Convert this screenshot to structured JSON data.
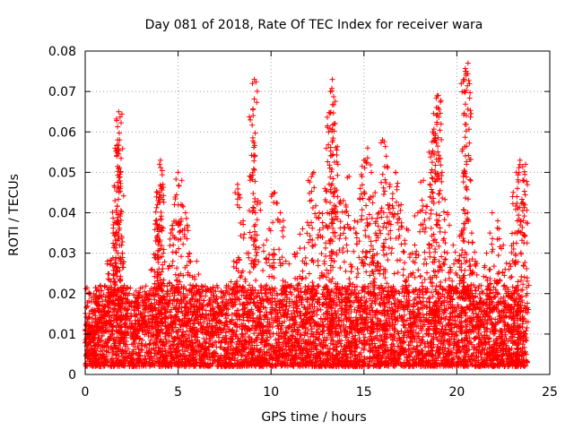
{
  "chart_data": {
    "type": "scatter",
    "title": "Day 081 of 2018, Rate Of TEC Index for receiver wara",
    "xlabel": "GPS time / hours",
    "ylabel": "ROTI / TECUs",
    "xlim": [
      0,
      25
    ],
    "ylim": [
      0,
      0.08
    ],
    "x_ticks": [
      0,
      5,
      10,
      15,
      20,
      25
    ],
    "x_tick_labels": [
      "0",
      "5",
      "10",
      "15",
      "20",
      "25"
    ],
    "y_ticks": [
      0,
      0.01,
      0.02,
      0.03,
      0.04,
      0.05,
      0.06,
      0.07,
      0.08
    ],
    "y_tick_labels": [
      "0",
      "0.01",
      "0.02",
      "0.03",
      "0.04",
      "0.05",
      "0.06",
      "0.07",
      "0.08"
    ],
    "grid": true,
    "marker": "+",
    "color": "#ff0000",
    "series": [
      {
        "name": "ROTI",
        "x": [
          0.1,
          0.2,
          0.3,
          0.4,
          0.5,
          0.6,
          0.8,
          1.0,
          1.2,
          1.4,
          1.5,
          1.6,
          1.7,
          1.75,
          1.8,
          1.85,
          1.9,
          2.0,
          2.1,
          2.3,
          2.5,
          2.7,
          3.0,
          3.3,
          3.6,
          3.8,
          3.9,
          4.0,
          4.05,
          4.1,
          4.2,
          4.4,
          4.6,
          4.8,
          5.0,
          5.2,
          5.4,
          5.6,
          5.8,
          6.0,
          6.2,
          6.5,
          6.8,
          7.0,
          7.3,
          7.6,
          8.0,
          8.2,
          8.5,
          8.8,
          9.0,
          9.1,
          9.3,
          9.6,
          9.9,
          10.2,
          10.5,
          10.8,
          11.1,
          11.4,
          11.7,
          12.0,
          12.3,
          12.6,
          12.9,
          13.1,
          13.2,
          13.3,
          13.4,
          13.6,
          13.9,
          14.2,
          14.5,
          14.8,
          15.0,
          15.2,
          15.4,
          15.6,
          15.8,
          16.0,
          16.2,
          16.4,
          16.7,
          17.0,
          17.3,
          17.6,
          17.9,
          18.2,
          18.5,
          18.7,
          18.8,
          18.9,
          19.0,
          19.2,
          19.5,
          19.8,
          20.1,
          20.3,
          20.4,
          20.5,
          20.6,
          20.8,
          21.0,
          21.3,
          21.6,
          21.9,
          22.2,
          22.5,
          22.8,
          23.0,
          23.2,
          23.4,
          23.6,
          23.7
        ],
        "y": [
          0.009,
          0.012,
          0.008,
          0.015,
          0.011,
          0.018,
          0.022,
          0.013,
          0.028,
          0.02,
          0.035,
          0.043,
          0.054,
          0.058,
          0.065,
          0.058,
          0.05,
          0.03,
          0.022,
          0.016,
          0.012,
          0.018,
          0.014,
          0.02,
          0.026,
          0.038,
          0.045,
          0.052,
          0.053,
          0.046,
          0.03,
          0.02,
          0.035,
          0.042,
          0.05,
          0.048,
          0.04,
          0.03,
          0.022,
          0.028,
          0.02,
          0.015,
          0.012,
          0.018,
          0.016,
          0.022,
          0.028,
          0.047,
          0.038,
          0.03,
          0.072,
          0.073,
          0.043,
          0.032,
          0.036,
          0.045,
          0.04,
          0.028,
          0.022,
          0.03,
          0.036,
          0.048,
          0.05,
          0.04,
          0.046,
          0.06,
          0.07,
          0.073,
          0.062,
          0.052,
          0.043,
          0.049,
          0.038,
          0.046,
          0.053,
          0.056,
          0.05,
          0.045,
          0.04,
          0.058,
          0.054,
          0.047,
          0.05,
          0.042,
          0.036,
          0.03,
          0.04,
          0.048,
          0.055,
          0.06,
          0.058,
          0.066,
          0.069,
          0.05,
          0.04,
          0.032,
          0.028,
          0.035,
          0.073,
          0.075,
          0.077,
          0.035,
          0.028,
          0.022,
          0.03,
          0.04,
          0.038,
          0.032,
          0.026,
          0.044,
          0.05,
          0.053,
          0.048,
          0.052
        ]
      }
    ],
    "baseline_note": "dense band",
    "band": {
      "x_range": [
        0,
        23.8
      ],
      "y_range": [
        0.002,
        0.022
      ]
    }
  }
}
